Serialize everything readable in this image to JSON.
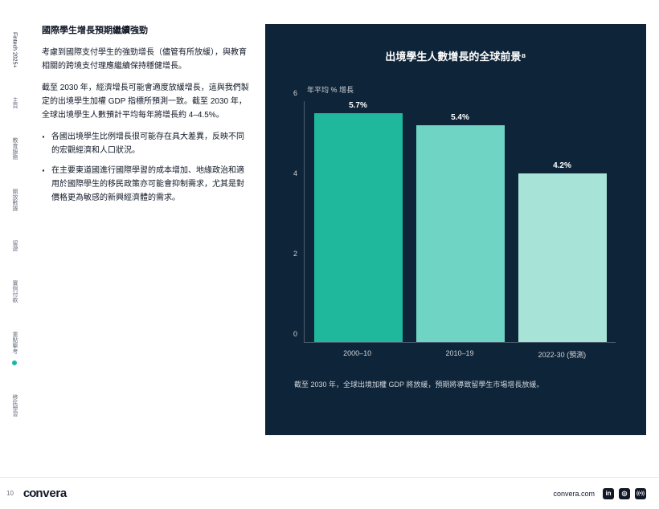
{
  "sidebar": {
    "items": [
      "Fintech 2025+",
      "主頁",
      "教育服務",
      "開放數據",
      "留遊",
      "實例付款",
      "重點擊考",
      "移民學習"
    ],
    "active_dot_after_index": 6
  },
  "content": {
    "heading": "國際學生增長預期繼續強勁",
    "p1": "考慮到國際支付學生的強勁增長（儘管有所放緩），與教育相關的跨境支付理應繼續保持穩健增長。",
    "p2": "截至 2030 年，經濟增長可能會適度放緩增長，這與我們製定的出境學生加權 GDP 指標所預測一致。截至 2030 年，全球出境學生人數預計平均每年將增長約 4–4.5%。",
    "bullets": [
      "各國出境學生比例增長很可能存在具大差異，反映不同的宏觀經濟和人口狀況。",
      "在主要東道國進行國際學習的成本增加、地緣政治和適用於國際學生的移民政策亦可能會抑制需求，尤其是對價格更為敏感的新興經濟體的需求。"
    ]
  },
  "chart": {
    "type": "bar",
    "title": "出境學生人數增長的全球前景⁸",
    "ylabel": "年平均 % 增長",
    "ylim": [
      0,
      6
    ],
    "ytick_step": 2,
    "yticks": [
      "0",
      "2",
      "4",
      "6"
    ],
    "categories": [
      "2000–10",
      "2010–19",
      "2022-30 (預測)"
    ],
    "values": [
      5.7,
      5.4,
      4.2
    ],
    "value_labels": [
      "5.7%",
      "5.4%",
      "4.2%"
    ],
    "bar_colors": [
      "#1fb89c",
      "#6fd4c3",
      "#a8e3d8"
    ],
    "background_color": "#0e2438",
    "axis_color": "#4b5f70",
    "text_color": "#d1d5db",
    "caption": "截至 2030 年，全球出境加權 GDP 將放緩，預期將導致留學生市場增長放緩。"
  },
  "footer": {
    "page": "10",
    "brand": "convera",
    "link": "convera.com",
    "icons": [
      "in",
      "◎",
      "((•))"
    ]
  }
}
